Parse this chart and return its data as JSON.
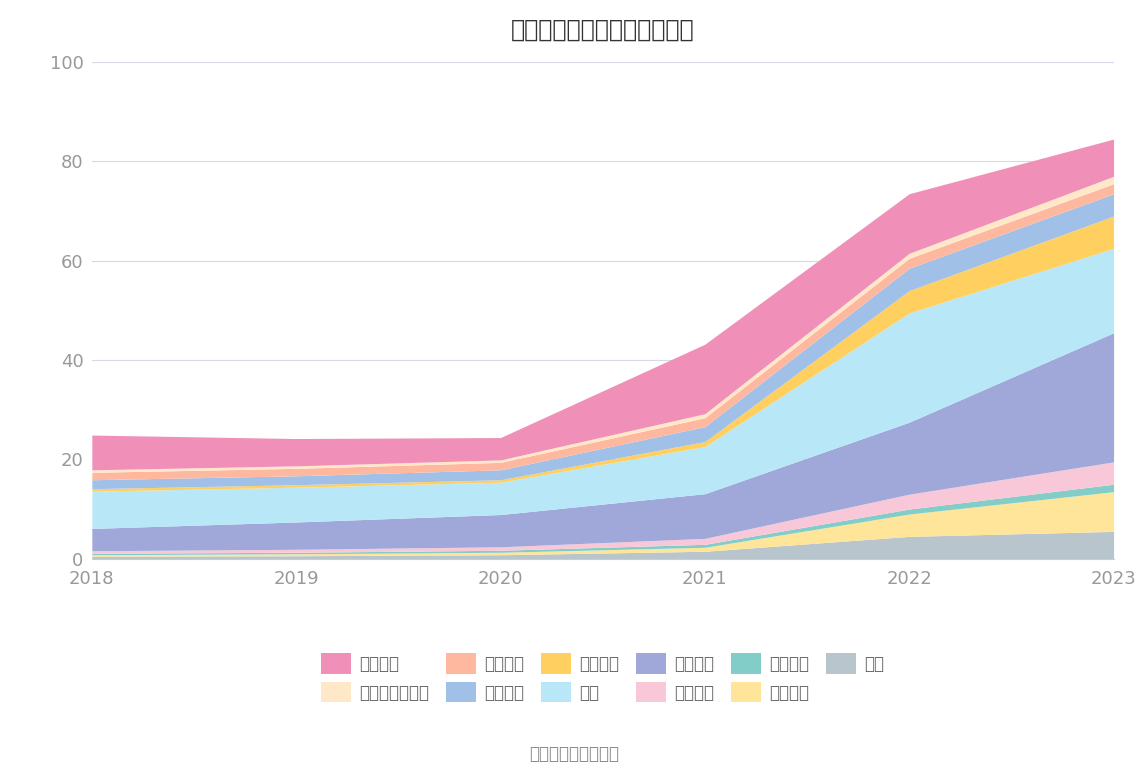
{
  "title": "历年主要资产堆积图（亿元）",
  "source": "数据来源：恒生聚源",
  "years": [
    2018,
    2019,
    2020,
    2021,
    2022,
    2023
  ],
  "series_bottom_to_top": [
    {
      "name": "其它",
      "color": "#b8c5cc",
      "values": [
        0.5,
        0.6,
        0.8,
        1.5,
        4.5,
        5.5
      ]
    },
    {
      "name": "开发支出",
      "color": "#ffe599",
      "values": [
        0.3,
        0.4,
        0.5,
        0.8,
        4.5,
        8.0
      ]
    },
    {
      "name": "无形资产",
      "color": "#82cdc8",
      "values": [
        0.3,
        0.3,
        0.4,
        0.6,
        1.0,
        1.5
      ]
    },
    {
      "name": "在建工程",
      "color": "#f9c8d8",
      "values": [
        0.5,
        0.6,
        0.7,
        1.2,
        3.0,
        4.5
      ]
    },
    {
      "name": "固定资产",
      "color": "#a0a8da",
      "values": [
        4.5,
        5.5,
        6.5,
        9.0,
        14.5,
        26.0
      ]
    },
    {
      "name": "存货",
      "color": "#b8e8f8",
      "values": [
        7.5,
        7.0,
        6.5,
        9.5,
        22.0,
        17.0
      ]
    },
    {
      "name": "预付款项",
      "color": "#ffd060",
      "values": [
        0.5,
        0.5,
        0.5,
        1.0,
        4.5,
        6.5
      ]
    },
    {
      "name": "应收账款",
      "color": "#a0c0e8",
      "values": [
        1.8,
        1.8,
        2.0,
        3.0,
        4.5,
        4.5
      ]
    },
    {
      "name": "应收票据",
      "color": "#ffb8a0",
      "values": [
        1.5,
        1.5,
        1.5,
        1.8,
        2.0,
        2.0
      ]
    },
    {
      "name": "交易性金融资产",
      "color": "#ffe8c8",
      "values": [
        0.5,
        0.5,
        0.5,
        0.8,
        1.0,
        1.5
      ]
    },
    {
      "name": "货币资金",
      "color": "#f090b8",
      "values": [
        7.0,
        5.5,
        4.5,
        14.0,
        12.0,
        7.5
      ]
    }
  ],
  "legend_row1": [
    {
      "name": "货币资金",
      "color": "#f090b8"
    },
    {
      "name": "交易性金融资产",
      "color": "#ffe8c8"
    },
    {
      "name": "应收票据",
      "color": "#ffb8a0"
    },
    {
      "name": "应收账款",
      "color": "#a0c0e8"
    },
    {
      "name": "预付款项",
      "color": "#ffd060"
    },
    {
      "name": "存货",
      "color": "#b8e8f8"
    }
  ],
  "legend_row2": [
    {
      "name": "固定资产",
      "color": "#a0a8da"
    },
    {
      "name": "在建工程",
      "color": "#f9c8d8"
    },
    {
      "name": "无形资产",
      "color": "#82cdc8"
    },
    {
      "name": "开发支出",
      "color": "#ffe599"
    },
    {
      "name": "其它",
      "color": "#b8c5cc"
    }
  ],
  "ylim": [
    0,
    100
  ],
  "yticks": [
    0,
    20,
    40,
    60,
    80,
    100
  ],
  "background_color": "#ffffff",
  "grid_color": "#d8d8e8",
  "title_fontsize": 17,
  "tick_fontsize": 13,
  "legend_fontsize": 12,
  "source_fontsize": 12
}
